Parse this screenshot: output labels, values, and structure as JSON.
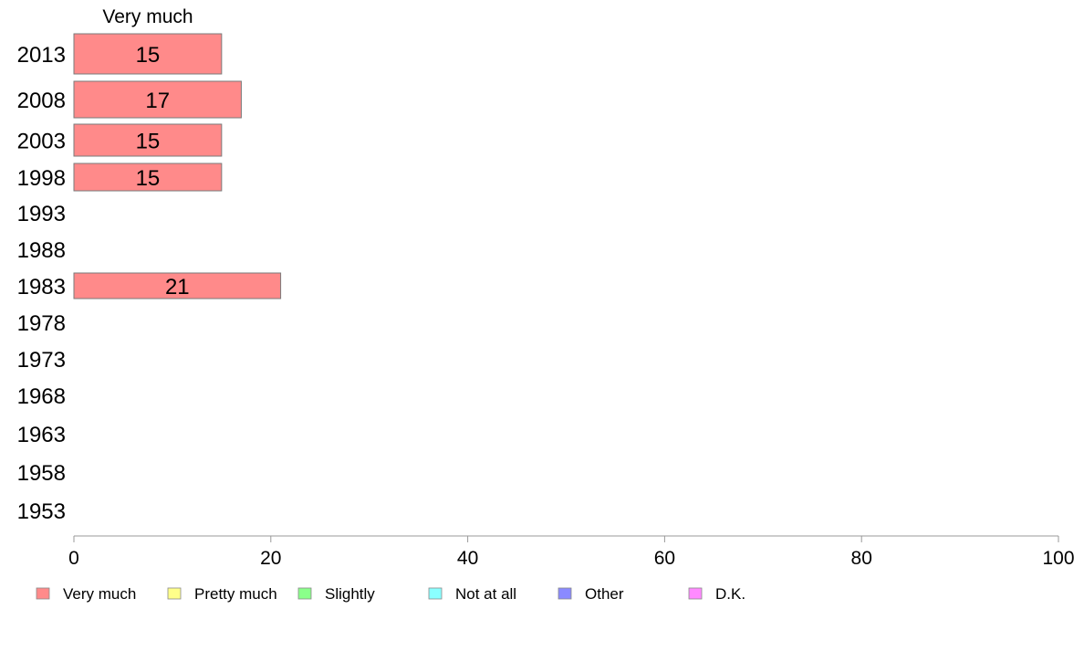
{
  "chart_data": {
    "type": "bar",
    "orientation": "horizontal",
    "column_header": "Very much",
    "categories": [
      "2013",
      "2008",
      "2003",
      "1998",
      "1993",
      "1988",
      "1983",
      "1978",
      "1973",
      "1968",
      "1963",
      "1958",
      "1953"
    ],
    "series": [
      {
        "name": "Very much",
        "color": "#ff8a8a",
        "values": [
          15,
          17,
          15,
          15,
          null,
          null,
          21,
          null,
          null,
          null,
          null,
          null,
          null
        ],
        "labels": [
          "15",
          "17",
          "15",
          "15",
          "",
          "",
          "21",
          "",
          "",
          "",
          "",
          "",
          ""
        ]
      }
    ],
    "xlim": [
      0,
      100
    ],
    "xticks": [
      0,
      20,
      40,
      60,
      80,
      100
    ],
    "legend": {
      "placement": "bottom",
      "items": [
        {
          "label": "Very much",
          "color": "#ff8a8a"
        },
        {
          "label": "Pretty much",
          "color": "#ffff8a"
        },
        {
          "label": "Slightly",
          "color": "#8aff8a"
        },
        {
          "label": "Not at all",
          "color": "#8affff"
        },
        {
          "label": "Other",
          "color": "#8a8aff"
        },
        {
          "label": "D.K.",
          "color": "#ff8aff"
        }
      ]
    },
    "grid": false
  }
}
